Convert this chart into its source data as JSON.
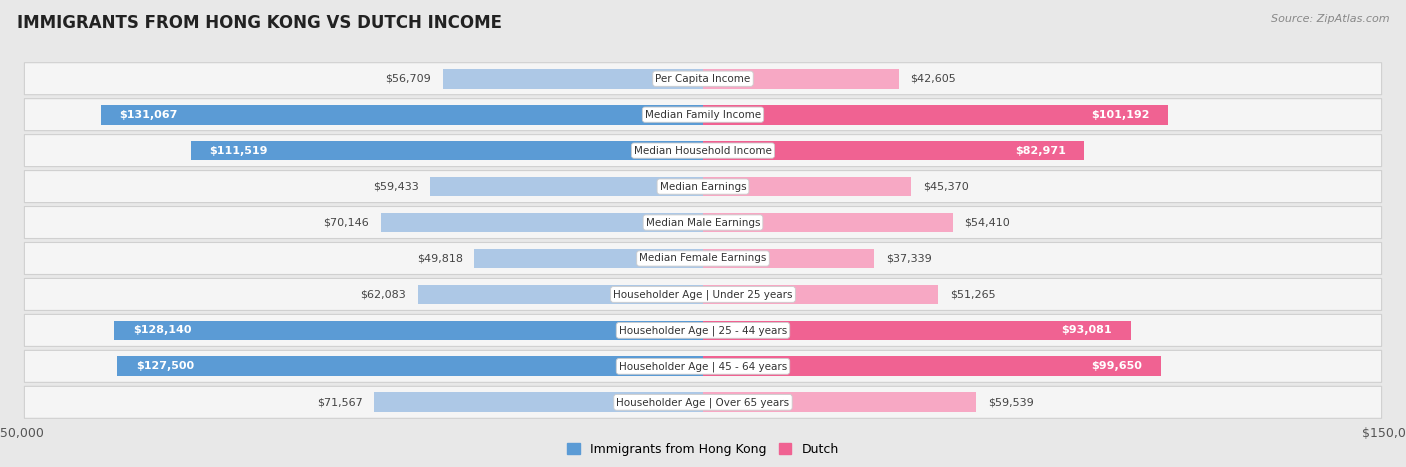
{
  "title": "IMMIGRANTS FROM HONG KONG VS DUTCH INCOME",
  "source": "Source: ZipAtlas.com",
  "categories": [
    "Per Capita Income",
    "Median Family Income",
    "Median Household Income",
    "Median Earnings",
    "Median Male Earnings",
    "Median Female Earnings",
    "Householder Age | Under 25 years",
    "Householder Age | 25 - 44 years",
    "Householder Age | 45 - 64 years",
    "Householder Age | Over 65 years"
  ],
  "hk_values": [
    56709,
    131067,
    111519,
    59433,
    70146,
    49818,
    62083,
    128140,
    127500,
    71567
  ],
  "dutch_values": [
    42605,
    101192,
    82971,
    45370,
    54410,
    37339,
    51265,
    93081,
    99650,
    59539
  ],
  "hk_labels": [
    "$56,709",
    "$131,067",
    "$111,519",
    "$59,433",
    "$70,146",
    "$49,818",
    "$62,083",
    "$128,140",
    "$127,500",
    "$71,567"
  ],
  "dutch_labels": [
    "$42,605",
    "$101,192",
    "$82,971",
    "$45,370",
    "$54,410",
    "$37,339",
    "$51,265",
    "$93,081",
    "$99,650",
    "$59,539"
  ],
  "hk_color_light": "#adc8e6",
  "hk_color_dark": "#5b9bd5",
  "dutch_color_light": "#f7a8c4",
  "dutch_color_dark": "#f06292",
  "hk_large_threshold": 90000,
  "dutch_large_threshold": 75000,
  "max_val": 150000,
  "bg_color": "#e8e8e8",
  "row_bg": "#f5f5f5",
  "row_border": "#d0d0d0",
  "legend_hk_color": "#5b9bd5",
  "legend_dutch_color": "#f06292",
  "label_fontsize": 8.0,
  "cat_fontsize": 7.5,
  "title_fontsize": 12,
  "source_fontsize": 8
}
